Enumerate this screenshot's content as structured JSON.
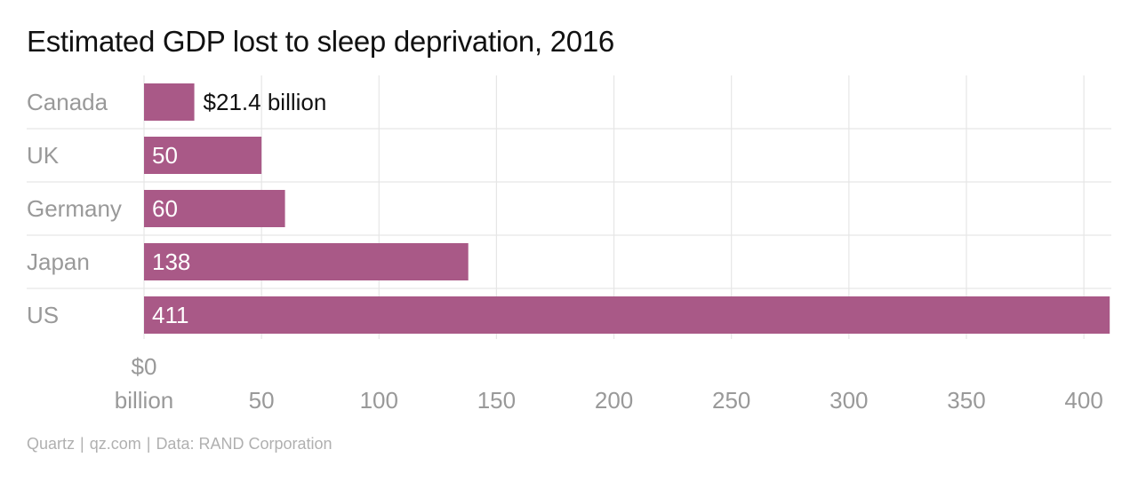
{
  "chart_data": {
    "type": "bar",
    "orientation": "horizontal",
    "title": "Estimated GDP lost to sleep deprivation, 2016",
    "categories": [
      "Canada",
      "UK",
      "Germany",
      "Japan",
      "US"
    ],
    "values": [
      21.4,
      50,
      60,
      138,
      411
    ],
    "value_labels": [
      "$21.4 billion",
      "50",
      "60",
      "138",
      "411"
    ],
    "xlim": [
      0,
      412
    ],
    "x_ticks": [
      {
        "value": 0,
        "label": [
          "$0",
          "billion"
        ]
      },
      {
        "value": 50,
        "label": [
          "50"
        ]
      },
      {
        "value": 100,
        "label": [
          "100"
        ]
      },
      {
        "value": 150,
        "label": [
          "150"
        ]
      },
      {
        "value": 200,
        "label": [
          "200"
        ]
      },
      {
        "value": 250,
        "label": [
          "250"
        ]
      },
      {
        "value": 300,
        "label": [
          "300"
        ]
      },
      {
        "value": 350,
        "label": [
          "350"
        ]
      },
      {
        "value": 400,
        "label": [
          "400"
        ]
      }
    ],
    "grid": true,
    "bar_color": "#a95987",
    "label_color": "#999999",
    "grid_color": "#e6e6e6"
  },
  "footer": {
    "brand": "Quartz",
    "site": "qz.com",
    "source": "Data: RAND Corporation"
  }
}
